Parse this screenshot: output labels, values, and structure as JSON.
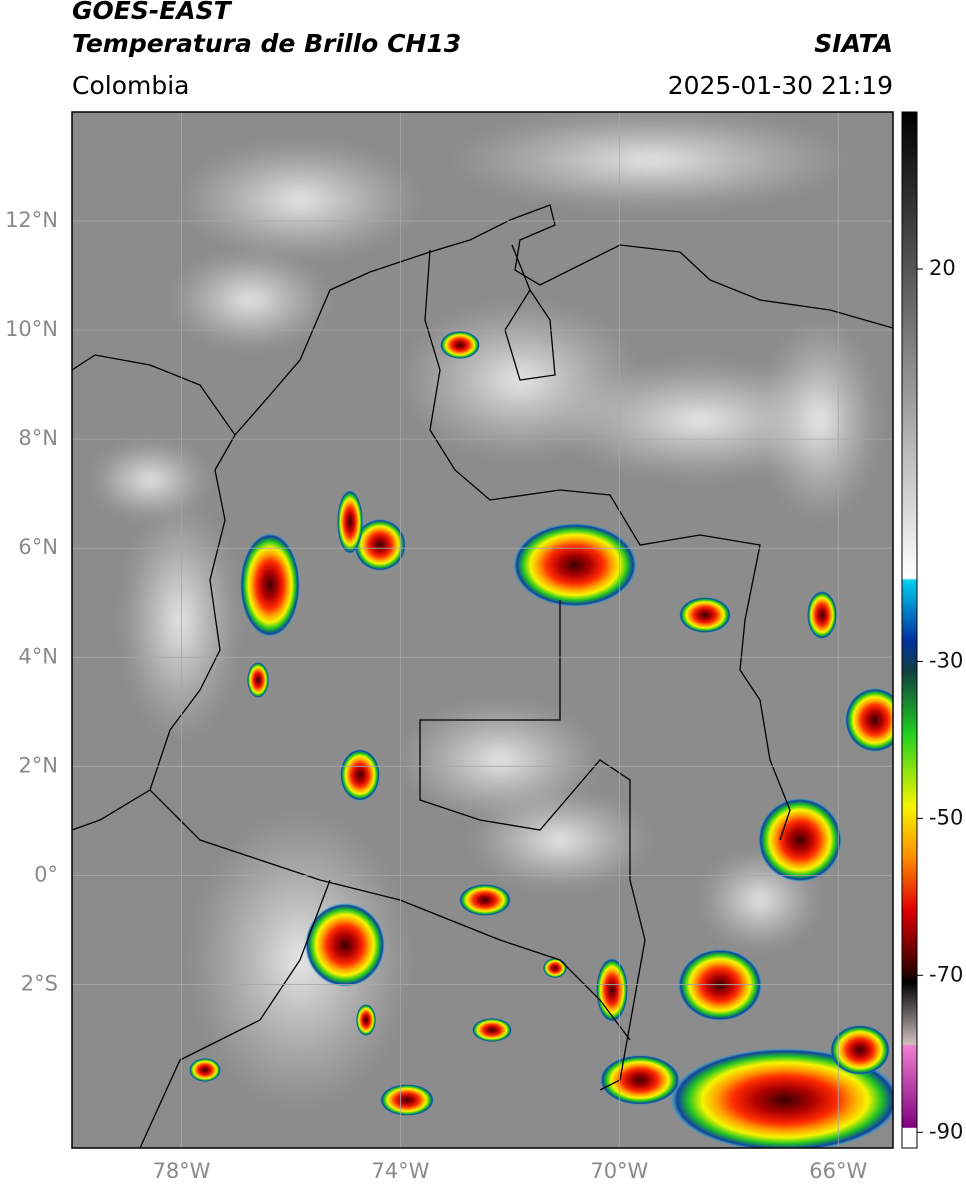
{
  "header": {
    "title": "GOES-EAST",
    "subtitle": "Temperatura de Brillo CH13",
    "source": "SIATA",
    "region": "Colombia",
    "timestamp": "2025-01-30 21:19"
  },
  "map": {
    "xlim": [
      -80,
      -65
    ],
    "ylim": [
      -5,
      14
    ],
    "yticks": [
      {
        "value": 12,
        "label": "12°N"
      },
      {
        "value": 10,
        "label": "10°N"
      },
      {
        "value": 8,
        "label": "8°N"
      },
      {
        "value": 6,
        "label": "6°N"
      },
      {
        "value": 4,
        "label": "4°N"
      },
      {
        "value": 2,
        "label": "2°N"
      },
      {
        "value": 0,
        "label": "0°"
      },
      {
        "value": -2,
        "label": "2°S"
      }
    ],
    "xticks": [
      {
        "value": -78,
        "label": "78°W"
      },
      {
        "value": -74,
        "label": "74°W"
      },
      {
        "value": -70,
        "label": "70°W"
      },
      {
        "value": -66,
        "label": "66°W"
      }
    ]
  },
  "colorbar": {
    "lim": [
      -92,
      40
    ],
    "ticks": [
      20,
      -30,
      -50,
      -70,
      -90
    ]
  }
}
